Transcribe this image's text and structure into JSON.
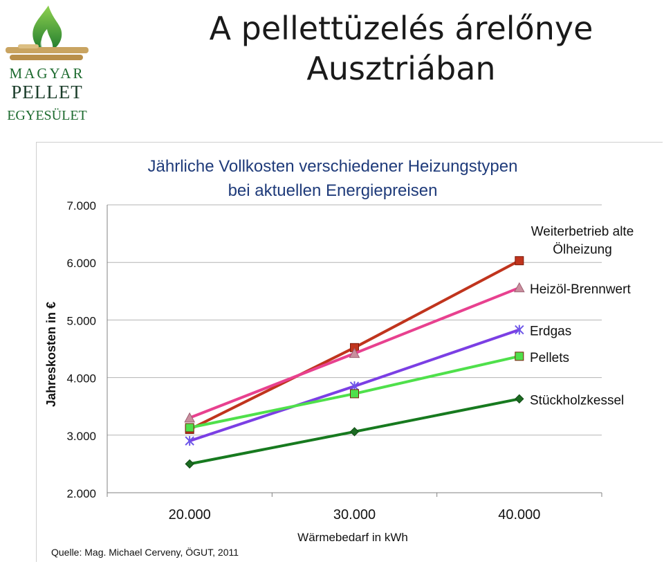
{
  "slide": {
    "title": "A pellettüzelés árelőnye Ausztriában"
  },
  "logo": {
    "line1": "MAGYAR",
    "line2": "PELLET",
    "line3": "EGYESÜLET"
  },
  "source": "Quelle: Mag. Michael Cerveny, ÖGUT, 2011",
  "chart_data": {
    "type": "line",
    "title": "Jährliche Vollkosten verschiedener Heizungstypen bei aktuellen Energiepreisen",
    "title_lines": [
      "Jährliche Vollkosten verschiedener Heizungstypen",
      "bei aktuellen Energiepreisen"
    ],
    "xlabel": "Wärmebedarf in kWh",
    "ylabel": "Jahreskosten in €",
    "x": [
      20000,
      30000,
      40000
    ],
    "x_tick_labels": [
      "20.000",
      "30.000",
      "40.000"
    ],
    "y_tick_labels": [
      "2.000",
      "3.000",
      "4.000",
      "5.000",
      "6.000",
      "7.000"
    ],
    "ylim": [
      2000,
      7000
    ],
    "grid": true,
    "legend": "inline-right",
    "series": [
      {
        "name": "Weiterbetrieb alte Ölheizung",
        "label_lines": [
          "Weiterbetrieb alte",
          "Ölheizung"
        ],
        "values": [
          3100,
          4520,
          6030
        ],
        "color": "#c0341d",
        "marker": "square"
      },
      {
        "name": "Heizöl-Brennwert",
        "label_lines": [
          "Heizöl-Brennwert"
        ],
        "values": [
          3300,
          4420,
          5560
        ],
        "color": "#e8418f",
        "marker": "triangle"
      },
      {
        "name": "Erdgas",
        "label_lines": [
          "Erdgas"
        ],
        "values": [
          2900,
          3850,
          4830
        ],
        "color": "#7b3fe4",
        "marker": "asterisk"
      },
      {
        "name": "Pellets",
        "label_lines": [
          "Pellets"
        ],
        "values": [
          3130,
          3720,
          4370
        ],
        "color": "#4fe04b",
        "marker": "square"
      },
      {
        "name": "Stückholzkessel",
        "label_lines": [
          "Stückholzkessel"
        ],
        "values": [
          2500,
          3060,
          3630
        ],
        "color": "#177a1f",
        "marker": "diamond"
      }
    ]
  }
}
